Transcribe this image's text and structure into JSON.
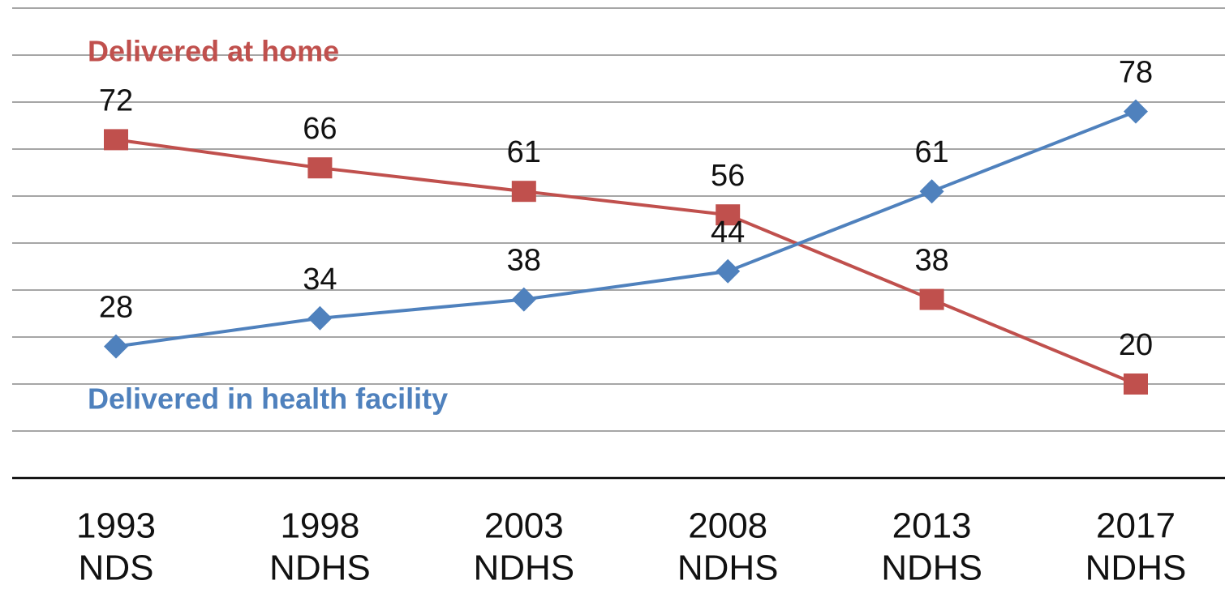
{
  "chart_data": {
    "type": "line",
    "categories": [
      [
        "1993",
        "NDS"
      ],
      [
        "1998",
        "NDHS"
      ],
      [
        "2003",
        "NDHS"
      ],
      [
        "2008",
        "NDHS"
      ],
      [
        "2013",
        "NDHS"
      ],
      [
        "2017",
        "NDHS"
      ]
    ],
    "series": [
      {
        "name": "Delivered at home",
        "color": "#c0504d",
        "marker": "square",
        "values": [
          72,
          66,
          61,
          56,
          38,
          20
        ]
      },
      {
        "name": "Delivered in health facility",
        "color": "#4f81bd",
        "marker": "diamond",
        "values": [
          28,
          34,
          38,
          44,
          61,
          78
        ]
      }
    ],
    "ylim": [
      0,
      100
    ],
    "yticks": [
      0,
      10,
      20,
      30,
      40,
      50,
      60,
      70,
      80,
      90,
      100
    ],
    "grid": true
  }
}
